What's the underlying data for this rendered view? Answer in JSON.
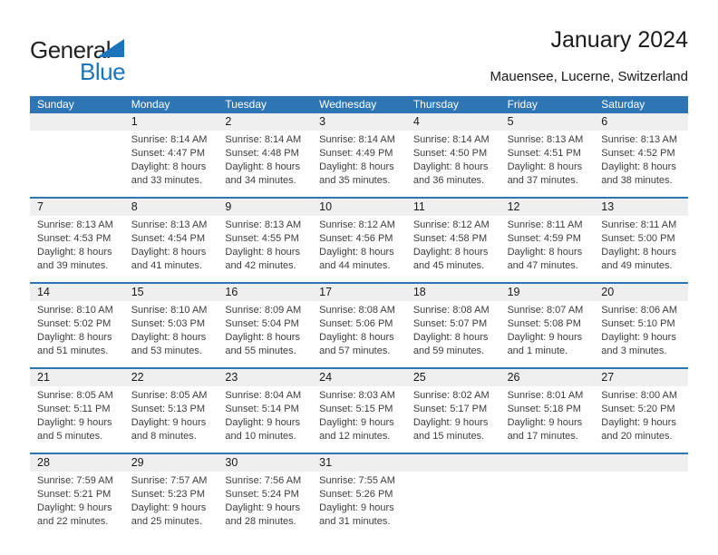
{
  "logo": {
    "word_general": "General",
    "word_blue": "Blue"
  },
  "header": {
    "title": "January 2024",
    "subtitle": "Mauensee, Lucerne, Switzerland"
  },
  "colors": {
    "header_blue": "#2E75B5",
    "logo_blue": "#1C75BC",
    "band_gray": "#EFEFEF"
  },
  "calendar": {
    "day_headers": [
      "Sunday",
      "Monday",
      "Tuesday",
      "Wednesday",
      "Thursday",
      "Friday",
      "Saturday"
    ],
    "labels": {
      "sunrise": "Sunrise:",
      "sunset": "Sunset:",
      "daylight": "Daylight:"
    },
    "weeks": [
      [
        null,
        {
          "day": "1",
          "sunrise": "8:14 AM",
          "sunset": "4:47 PM",
          "daylight": "8 hours and 33 minutes."
        },
        {
          "day": "2",
          "sunrise": "8:14 AM",
          "sunset": "4:48 PM",
          "daylight": "8 hours and 34 minutes."
        },
        {
          "day": "3",
          "sunrise": "8:14 AM",
          "sunset": "4:49 PM",
          "daylight": "8 hours and 35 minutes."
        },
        {
          "day": "4",
          "sunrise": "8:14 AM",
          "sunset": "4:50 PM",
          "daylight": "8 hours and 36 minutes."
        },
        {
          "day": "5",
          "sunrise": "8:13 AM",
          "sunset": "4:51 PM",
          "daylight": "8 hours and 37 minutes."
        },
        {
          "day": "6",
          "sunrise": "8:13 AM",
          "sunset": "4:52 PM",
          "daylight": "8 hours and 38 minutes."
        }
      ],
      [
        {
          "day": "7",
          "sunrise": "8:13 AM",
          "sunset": "4:53 PM",
          "daylight": "8 hours and 39 minutes."
        },
        {
          "day": "8",
          "sunrise": "8:13 AM",
          "sunset": "4:54 PM",
          "daylight": "8 hours and 41 minutes."
        },
        {
          "day": "9",
          "sunrise": "8:13 AM",
          "sunset": "4:55 PM",
          "daylight": "8 hours and 42 minutes."
        },
        {
          "day": "10",
          "sunrise": "8:12 AM",
          "sunset": "4:56 PM",
          "daylight": "8 hours and 44 minutes."
        },
        {
          "day": "11",
          "sunrise": "8:12 AM",
          "sunset": "4:58 PM",
          "daylight": "8 hours and 45 minutes."
        },
        {
          "day": "12",
          "sunrise": "8:11 AM",
          "sunset": "4:59 PM",
          "daylight": "8 hours and 47 minutes."
        },
        {
          "day": "13",
          "sunrise": "8:11 AM",
          "sunset": "5:00 PM",
          "daylight": "8 hours and 49 minutes."
        }
      ],
      [
        {
          "day": "14",
          "sunrise": "8:10 AM",
          "sunset": "5:02 PM",
          "daylight": "8 hours and 51 minutes."
        },
        {
          "day": "15",
          "sunrise": "8:10 AM",
          "sunset": "5:03 PM",
          "daylight": "8 hours and 53 minutes."
        },
        {
          "day": "16",
          "sunrise": "8:09 AM",
          "sunset": "5:04 PM",
          "daylight": "8 hours and 55 minutes."
        },
        {
          "day": "17",
          "sunrise": "8:08 AM",
          "sunset": "5:06 PM",
          "daylight": "8 hours and 57 minutes."
        },
        {
          "day": "18",
          "sunrise": "8:08 AM",
          "sunset": "5:07 PM",
          "daylight": "8 hours and 59 minutes."
        },
        {
          "day": "19",
          "sunrise": "8:07 AM",
          "sunset": "5:08 PM",
          "daylight": "9 hours and 1 minute."
        },
        {
          "day": "20",
          "sunrise": "8:06 AM",
          "sunset": "5:10 PM",
          "daylight": "9 hours and 3 minutes."
        }
      ],
      [
        {
          "day": "21",
          "sunrise": "8:05 AM",
          "sunset": "5:11 PM",
          "daylight": "9 hours and 5 minutes."
        },
        {
          "day": "22",
          "sunrise": "8:05 AM",
          "sunset": "5:13 PM",
          "daylight": "9 hours and 8 minutes."
        },
        {
          "day": "23",
          "sunrise": "8:04 AM",
          "sunset": "5:14 PM",
          "daylight": "9 hours and 10 minutes."
        },
        {
          "day": "24",
          "sunrise": "8:03 AM",
          "sunset": "5:15 PM",
          "daylight": "9 hours and 12 minutes."
        },
        {
          "day": "25",
          "sunrise": "8:02 AM",
          "sunset": "5:17 PM",
          "daylight": "9 hours and 15 minutes."
        },
        {
          "day": "26",
          "sunrise": "8:01 AM",
          "sunset": "5:18 PM",
          "daylight": "9 hours and 17 minutes."
        },
        {
          "day": "27",
          "sunrise": "8:00 AM",
          "sunset": "5:20 PM",
          "daylight": "9 hours and 20 minutes."
        }
      ],
      [
        {
          "day": "28",
          "sunrise": "7:59 AM",
          "sunset": "5:21 PM",
          "daylight": "9 hours and 22 minutes."
        },
        {
          "day": "29",
          "sunrise": "7:57 AM",
          "sunset": "5:23 PM",
          "daylight": "9 hours and 25 minutes."
        },
        {
          "day": "30",
          "sunrise": "7:56 AM",
          "sunset": "5:24 PM",
          "daylight": "9 hours and 28 minutes."
        },
        {
          "day": "31",
          "sunrise": "7:55 AM",
          "sunset": "5:26 PM",
          "daylight": "9 hours and 31 minutes."
        },
        null,
        null,
        null
      ]
    ]
  }
}
